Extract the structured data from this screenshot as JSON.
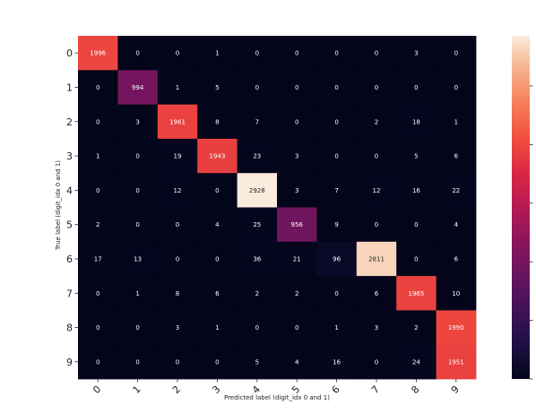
{
  "chart_data": {
    "type": "heatmap",
    "title": "",
    "xlabel": "Predicted label (digit_idx 0 and 1)",
    "ylabel": "True label (digit_idx 0 and 1)",
    "x_categories": [
      "0",
      "1",
      "2",
      "3",
      "4",
      "5",
      "6",
      "7",
      "8",
      "9"
    ],
    "y_categories": [
      "0",
      "1",
      "2",
      "3",
      "4",
      "5",
      "6",
      "7",
      "8",
      "9"
    ],
    "values": [
      [
        1996,
        0,
        0,
        1,
        0,
        0,
        0,
        0,
        3,
        0
      ],
      [
        0,
        994,
        1,
        5,
        0,
        0,
        0,
        0,
        0,
        0
      ],
      [
        0,
        3,
        1961,
        8,
        7,
        0,
        0,
        2,
        18,
        1
      ],
      [
        1,
        0,
        19,
        1943,
        23,
        3,
        0,
        0,
        5,
        6
      ],
      [
        0,
        0,
        12,
        0,
        2928,
        3,
        7,
        12,
        16,
        22
      ],
      [
        2,
        0,
        0,
        4,
        25,
        956,
        9,
        0,
        0,
        4
      ],
      [
        17,
        13,
        0,
        0,
        36,
        21,
        96,
        2811,
        0,
        6
      ],
      [
        0,
        1,
        8,
        6,
        2,
        2,
        0,
        6,
        1965,
        10
      ],
      [
        0,
        0,
        3,
        1,
        0,
        0,
        1,
        3,
        2,
        1990
      ],
      [
        0,
        0,
        0,
        0,
        5,
        4,
        16,
        0,
        24,
        1951
      ]
    ],
    "colorbar": {
      "min": 0,
      "max": 2928,
      "colormap": "rocket",
      "tick_labels_visible": false
    },
    "grid": false,
    "x_tick_rotation": 45
  }
}
